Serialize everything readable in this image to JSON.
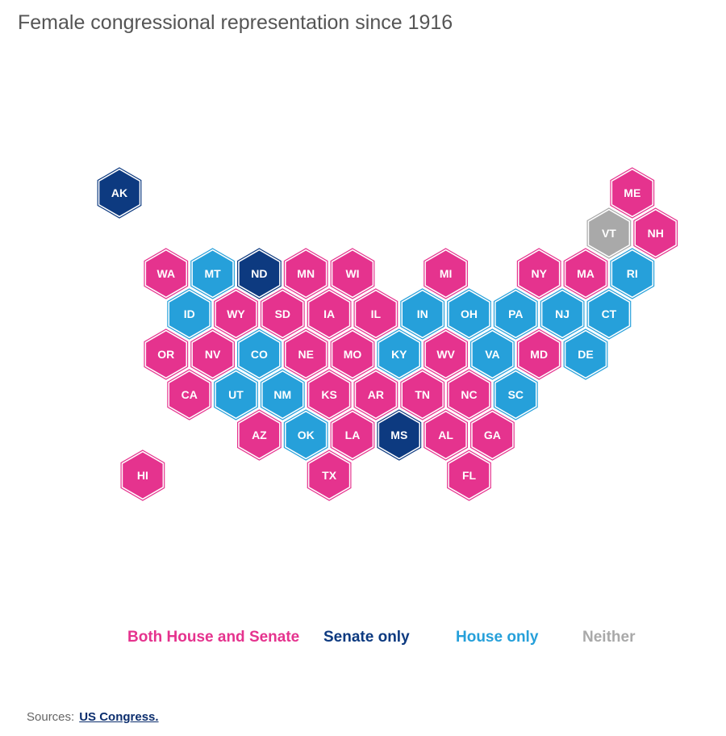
{
  "title": "Female congressional representation since 1916",
  "colors": {
    "both": "#e5338e",
    "senate": "#0d3a80",
    "house": "#26a0da",
    "neither": "#a9a9a9"
  },
  "legend": [
    {
      "key": "both",
      "label": "Both House and Senate"
    },
    {
      "key": "senate",
      "label": "Senate only"
    },
    {
      "key": "house",
      "label": "House only"
    },
    {
      "key": "neither",
      "label": "Neither"
    }
  ],
  "sources": {
    "label": "Sources:",
    "link_text": "US Congress."
  },
  "chart_data": {
    "type": "hex tile map",
    "title": "Female congressional representation since 1916",
    "legend_placement": "bottom",
    "states": [
      {
        "abbr": "AK",
        "category": "senate",
        "row": 0,
        "col": 0
      },
      {
        "abbr": "ME",
        "category": "both",
        "row": 0,
        "col": 11
      },
      {
        "abbr": "VT",
        "category": "neither",
        "row": 1,
        "col": 10
      },
      {
        "abbr": "NH",
        "category": "both",
        "row": 1,
        "col": 11
      },
      {
        "abbr": "WA",
        "category": "both",
        "row": 2,
        "col": 1
      },
      {
        "abbr": "MT",
        "category": "house",
        "row": 2,
        "col": 2
      },
      {
        "abbr": "ND",
        "category": "senate",
        "row": 2,
        "col": 3
      },
      {
        "abbr": "MN",
        "category": "both",
        "row": 2,
        "col": 4
      },
      {
        "abbr": "WI",
        "category": "both",
        "row": 2,
        "col": 5
      },
      {
        "abbr": "MI",
        "category": "both",
        "row": 2,
        "col": 7
      },
      {
        "abbr": "NY",
        "category": "both",
        "row": 2,
        "col": 9
      },
      {
        "abbr": "MA",
        "category": "both",
        "row": 2,
        "col": 10
      },
      {
        "abbr": "RI",
        "category": "house",
        "row": 2,
        "col": 11
      },
      {
        "abbr": "ID",
        "category": "house",
        "row": 3,
        "col": 1
      },
      {
        "abbr": "WY",
        "category": "both",
        "row": 3,
        "col": 2
      },
      {
        "abbr": "SD",
        "category": "both",
        "row": 3,
        "col": 3
      },
      {
        "abbr": "IA",
        "category": "both",
        "row": 3,
        "col": 4
      },
      {
        "abbr": "IL",
        "category": "both",
        "row": 3,
        "col": 5
      },
      {
        "abbr": "IN",
        "category": "house",
        "row": 3,
        "col": 6
      },
      {
        "abbr": "OH",
        "category": "house",
        "row": 3,
        "col": 7
      },
      {
        "abbr": "PA",
        "category": "house",
        "row": 3,
        "col": 8
      },
      {
        "abbr": "NJ",
        "category": "house",
        "row": 3,
        "col": 9
      },
      {
        "abbr": "CT",
        "category": "house",
        "row": 3,
        "col": 10
      },
      {
        "abbr": "OR",
        "category": "both",
        "row": 4,
        "col": 1
      },
      {
        "abbr": "NV",
        "category": "both",
        "row": 4,
        "col": 2
      },
      {
        "abbr": "CO",
        "category": "house",
        "row": 4,
        "col": 3
      },
      {
        "abbr": "NE",
        "category": "both",
        "row": 4,
        "col": 4
      },
      {
        "abbr": "MO",
        "category": "both",
        "row": 4,
        "col": 5
      },
      {
        "abbr": "KY",
        "category": "house",
        "row": 4,
        "col": 6
      },
      {
        "abbr": "WV",
        "category": "both",
        "row": 4,
        "col": 7
      },
      {
        "abbr": "VA",
        "category": "house",
        "row": 4,
        "col": 8
      },
      {
        "abbr": "MD",
        "category": "both",
        "row": 4,
        "col": 9
      },
      {
        "abbr": "DE",
        "category": "house",
        "row": 4,
        "col": 10
      },
      {
        "abbr": "CA",
        "category": "both",
        "row": 5,
        "col": 1
      },
      {
        "abbr": "UT",
        "category": "house",
        "row": 5,
        "col": 2
      },
      {
        "abbr": "NM",
        "category": "house",
        "row": 5,
        "col": 3
      },
      {
        "abbr": "KS",
        "category": "both",
        "row": 5,
        "col": 4
      },
      {
        "abbr": "AR",
        "category": "both",
        "row": 5,
        "col": 5
      },
      {
        "abbr": "TN",
        "category": "both",
        "row": 5,
        "col": 6
      },
      {
        "abbr": "NC",
        "category": "both",
        "row": 5,
        "col": 7
      },
      {
        "abbr": "SC",
        "category": "house",
        "row": 5,
        "col": 8
      },
      {
        "abbr": "AZ",
        "category": "both",
        "row": 6,
        "col": 3
      },
      {
        "abbr": "OK",
        "category": "house",
        "row": 6,
        "col": 4
      },
      {
        "abbr": "LA",
        "category": "both",
        "row": 6,
        "col": 5
      },
      {
        "abbr": "MS",
        "category": "senate",
        "row": 6,
        "col": 6
      },
      {
        "abbr": "AL",
        "category": "both",
        "row": 6,
        "col": 7
      },
      {
        "abbr": "GA",
        "category": "both",
        "row": 6,
        "col": 8
      },
      {
        "abbr": "HI",
        "category": "both",
        "row": 7,
        "col": 0
      },
      {
        "abbr": "TX",
        "category": "both",
        "row": 7,
        "col": 4
      },
      {
        "abbr": "FL",
        "category": "both",
        "row": 7,
        "col": 7
      }
    ]
  }
}
